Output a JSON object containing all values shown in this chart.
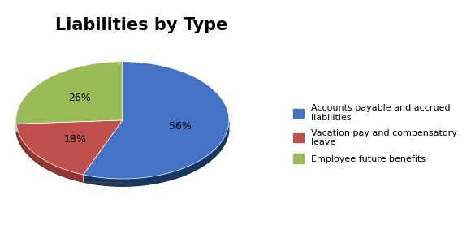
{
  "title": "Liabilities by Type",
  "slices": [
    56,
    18,
    26
  ],
  "legend_labels": [
    "Accounts payable and accrued\nliabilities",
    "Vacation pay and compensatory\nleave",
    "Employee future benefits"
  ],
  "colors": [
    "#4472C4",
    "#C0504D",
    "#9BBB59"
  ],
  "dark_colors": [
    "#17375E",
    "#943634",
    "#76923C"
  ],
  "startangle": 90,
  "title_fontsize": 15,
  "background_color": "#FFFFFF",
  "pct_labels": [
    "56%",
    "18%",
    "26%"
  ]
}
